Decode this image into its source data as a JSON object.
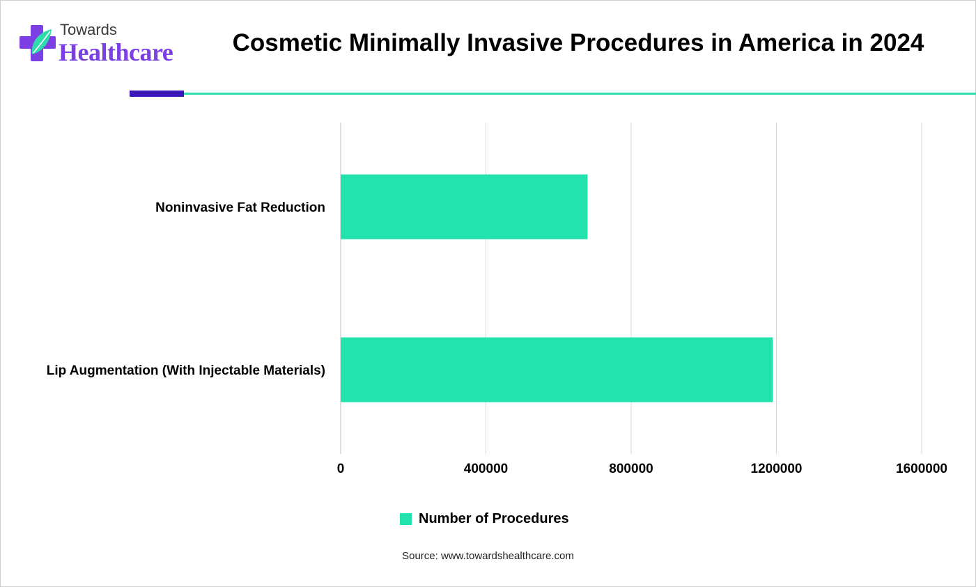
{
  "header": {
    "logo_top": "Towards",
    "logo_bottom": "Healthcare",
    "title": "Cosmetic Minimally Invasive Procedures in America in 2024"
  },
  "colors": {
    "bar": "#23e2ad",
    "accent": "#3b16b8",
    "rule": "#2fdcab",
    "logo_purple": "#7b3fe4",
    "logo_teal": "#2fdcab",
    "grid": "#d9d9d9"
  },
  "chart_data": {
    "type": "bar",
    "orientation": "horizontal",
    "categories": [
      "Noninvasive Fat Reduction",
      "Lip Augmentation (With Injectable Materials)"
    ],
    "series": [
      {
        "name": "Number of Procedures",
        "values": [
          680000,
          1190000
        ]
      }
    ],
    "xlim": [
      0,
      1600000
    ],
    "xticks": [
      0,
      400000,
      800000,
      1200000,
      1600000
    ],
    "xtick_labels": [
      "0",
      "400000",
      "800000",
      "1200000",
      "1600000"
    ],
    "grid": true,
    "legend_position": "bottom"
  },
  "legend": {
    "label": "Number of Procedures"
  },
  "footer": {
    "source": "Source: www.towardshealthcare.com"
  }
}
